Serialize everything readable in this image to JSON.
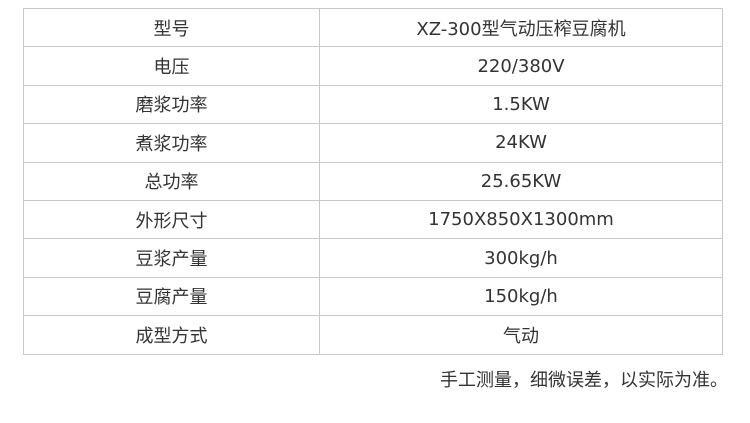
{
  "specs": [
    {
      "label": "型号",
      "value": "XZ-300型气动压榨豆腐机"
    },
    {
      "label": "电压",
      "value": "220/380V"
    },
    {
      "label": "磨浆功率",
      "value": "1.5KW"
    },
    {
      "label": "煮浆功率",
      "value": "24KW"
    },
    {
      "label": "总功率",
      "value": "25.65KW"
    },
    {
      "label": "外形尺寸",
      "value": "1750X850X1300mm"
    },
    {
      "label": "豆浆产量",
      "value": "300kg/h"
    },
    {
      "label": "豆腐产量",
      "value": "150kg/h"
    },
    {
      "label": "成型方式",
      "value": "气动"
    }
  ],
  "note": "手工测量，细微误差，以实际为准。"
}
